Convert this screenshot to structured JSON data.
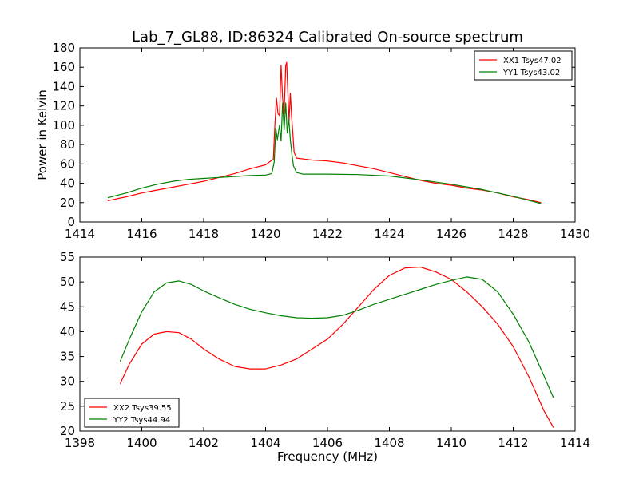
{
  "chart_data": [
    {
      "type": "line",
      "title": "Lab_7_GL88, ID:86324 Calibrated On-source spectrum",
      "xlabel": "",
      "ylabel": "Power in Kelvin",
      "xlim": [
        1414,
        1430
      ],
      "ylim": [
        0,
        180
      ],
      "xticks": [
        1414,
        1416,
        1418,
        1420,
        1422,
        1424,
        1426,
        1428,
        1430
      ],
      "yticks": [
        0,
        20,
        40,
        60,
        80,
        100,
        120,
        140,
        160,
        180
      ],
      "legend_position": "top-right",
      "series": [
        {
          "name": "XX1 Tsys47.02",
          "color": "#ff0000",
          "points": [
            [
              1414.9,
              22
            ],
            [
              1415.5,
              26
            ],
            [
              1416.0,
              30
            ],
            [
              1416.5,
              33
            ],
            [
              1417.0,
              36
            ],
            [
              1417.5,
              39
            ],
            [
              1418.0,
              42
            ],
            [
              1418.5,
              46
            ],
            [
              1419.0,
              50
            ],
            [
              1419.5,
              55
            ],
            [
              1420.0,
              59
            ],
            [
              1420.25,
              65
            ],
            [
              1420.3,
              100
            ],
            [
              1420.35,
              128
            ],
            [
              1420.4,
              112
            ],
            [
              1420.45,
              110
            ],
            [
              1420.5,
              162
            ],
            [
              1420.55,
              128
            ],
            [
              1420.6,
              112
            ],
            [
              1420.65,
              162
            ],
            [
              1420.68,
              165
            ],
            [
              1420.72,
              132
            ],
            [
              1420.76,
              105
            ],
            [
              1420.8,
              133
            ],
            [
              1420.84,
              110
            ],
            [
              1420.88,
              92
            ],
            [
              1420.92,
              72
            ],
            [
              1421.0,
              66
            ],
            [
              1421.5,
              64
            ],
            [
              1422.0,
              63
            ],
            [
              1422.5,
              61
            ],
            [
              1423.0,
              58
            ],
            [
              1423.5,
              55
            ],
            [
              1424.0,
              51
            ],
            [
              1424.5,
              47
            ],
            [
              1425.0,
              43
            ],
            [
              1425.5,
              40
            ],
            [
              1426.0,
              38
            ],
            [
              1426.5,
              35
            ],
            [
              1427.0,
              33
            ],
            [
              1427.5,
              30
            ],
            [
              1428.0,
              26
            ],
            [
              1428.5,
              23
            ],
            [
              1428.9,
              20
            ]
          ]
        },
        {
          "name": "YY1 Tsys43.02",
          "color": "#008000",
          "points": [
            [
              1414.9,
              25
            ],
            [
              1415.5,
              30
            ],
            [
              1416.0,
              35
            ],
            [
              1416.5,
              39
            ],
            [
              1417.0,
              42
            ],
            [
              1417.5,
              44
            ],
            [
              1418.0,
              45
            ],
            [
              1418.5,
              46
            ],
            [
              1419.0,
              47
            ],
            [
              1419.5,
              48
            ],
            [
              1420.0,
              48.5
            ],
            [
              1420.2,
              50
            ],
            [
              1420.28,
              62
            ],
            [
              1420.33,
              97
            ],
            [
              1420.38,
              85
            ],
            [
              1420.45,
              100
            ],
            [
              1420.5,
              84
            ],
            [
              1420.55,
              123
            ],
            [
              1420.6,
              95
            ],
            [
              1420.65,
              123
            ],
            [
              1420.7,
              92
            ],
            [
              1420.75,
              106
            ],
            [
              1420.8,
              85
            ],
            [
              1420.85,
              70
            ],
            [
              1420.9,
              58
            ],
            [
              1421.0,
              51
            ],
            [
              1421.2,
              49.5
            ],
            [
              1422.0,
              49.5
            ],
            [
              1423.0,
              49
            ],
            [
              1424.0,
              47.5
            ],
            [
              1425.0,
              43.5
            ],
            [
              1426.0,
              39
            ],
            [
              1427.0,
              33.5
            ],
            [
              1428.0,
              26.5
            ],
            [
              1428.9,
              19
            ]
          ]
        }
      ]
    },
    {
      "type": "line",
      "title": "",
      "xlabel": "Frequency (MHz)",
      "ylabel": "",
      "xlim": [
        1398,
        1414
      ],
      "ylim": [
        20,
        55
      ],
      "xticks": [
        1398,
        1400,
        1402,
        1404,
        1406,
        1408,
        1410,
        1412,
        1414
      ],
      "yticks": [
        20,
        25,
        30,
        35,
        40,
        45,
        50,
        55
      ],
      "legend_position": "bottom-left",
      "series": [
        {
          "name": "XX2 Tsys39.55",
          "color": "#ff0000",
          "points": [
            [
              1399.3,
              29.5
            ],
            [
              1399.6,
              33.5
            ],
            [
              1400.0,
              37.5
            ],
            [
              1400.4,
              39.5
            ],
            [
              1400.8,
              40
            ],
            [
              1401.2,
              39.8
            ],
            [
              1401.6,
              38.5
            ],
            [
              1402.0,
              36.5
            ],
            [
              1402.5,
              34.5
            ],
            [
              1403.0,
              33
            ],
            [
              1403.5,
              32.5
            ],
            [
              1404.0,
              32.5
            ],
            [
              1404.5,
              33.3
            ],
            [
              1405.0,
              34.5
            ],
            [
              1405.5,
              36.5
            ],
            [
              1406.0,
              38.5
            ],
            [
              1406.5,
              41.5
            ],
            [
              1407.0,
              45
            ],
            [
              1407.5,
              48.5
            ],
            [
              1408.0,
              51.3
            ],
            [
              1408.5,
              52.8
            ],
            [
              1409.0,
              53
            ],
            [
              1409.5,
              52
            ],
            [
              1410.0,
              50.5
            ],
            [
              1410.5,
              48
            ],
            [
              1411.0,
              45
            ],
            [
              1411.5,
              41.5
            ],
            [
              1412.0,
              37
            ],
            [
              1412.5,
              31
            ],
            [
              1413.0,
              24
            ],
            [
              1413.3,
              20.7
            ]
          ]
        },
        {
          "name": "YY2 Tsys44.94",
          "color": "#008000",
          "points": [
            [
              1399.3,
              34
            ],
            [
              1399.6,
              38.5
            ],
            [
              1400.0,
              44
            ],
            [
              1400.4,
              48
            ],
            [
              1400.8,
              49.8
            ],
            [
              1401.2,
              50.2
            ],
            [
              1401.6,
              49.5
            ],
            [
              1402.0,
              48.2
            ],
            [
              1402.5,
              46.8
            ],
            [
              1403.0,
              45.5
            ],
            [
              1403.5,
              44.5
            ],
            [
              1404.0,
              43.8
            ],
            [
              1404.5,
              43.2
            ],
            [
              1405.0,
              42.8
            ],
            [
              1405.5,
              42.7
            ],
            [
              1406.0,
              42.8
            ],
            [
              1406.5,
              43.3
            ],
            [
              1407.0,
              44.3
            ],
            [
              1407.5,
              45.5
            ],
            [
              1408.0,
              46.5
            ],
            [
              1408.5,
              47.5
            ],
            [
              1409.0,
              48.5
            ],
            [
              1409.5,
              49.5
            ],
            [
              1410.0,
              50.3
            ],
            [
              1410.5,
              51
            ],
            [
              1411.0,
              50.5
            ],
            [
              1411.5,
              48
            ],
            [
              1412.0,
              43.5
            ],
            [
              1412.5,
              38
            ],
            [
              1413.0,
              31
            ],
            [
              1413.3,
              26.7
            ]
          ]
        }
      ]
    }
  ]
}
